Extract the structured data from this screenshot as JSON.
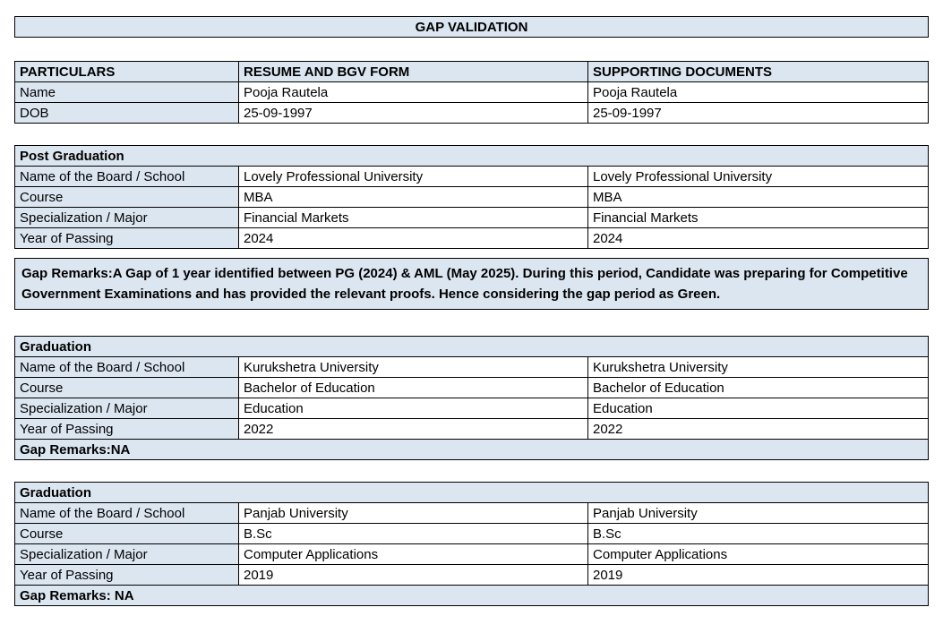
{
  "title": "GAP VALIDATION",
  "columns": [
    "PARTICULARS",
    "RESUME AND BGV FORM",
    "SUPPORTING DOCUMENTS"
  ],
  "summary": [
    {
      "label": "Name",
      "resume": "Pooja Rautela",
      "supporting": "Pooja Rautela"
    },
    {
      "label": "DOB",
      "resume": "25-09-1997",
      "supporting": "25-09-1997"
    }
  ],
  "sections": [
    {
      "heading": "Post Graduation",
      "rows": [
        {
          "label": "Name of the Board / School",
          "resume": "Lovely Professional University",
          "supporting": "Lovely Professional University"
        },
        {
          "label": "Course",
          "resume": "MBA",
          "supporting": "MBA"
        },
        {
          "label": "Specialization / Major",
          "resume": "Financial Markets",
          "supporting": "Financial Markets"
        },
        {
          "label": "Year of Passing",
          "resume": "2024",
          "supporting": "2024"
        }
      ],
      "gap_remarks": "Gap Remarks:A Gap of 1 year identified between PG (2024) & AML (May 2025). During this period, Candidate was preparing for Competitive Government Examinations and has provided the relevant proofs. Hence considering the gap period as Green."
    },
    {
      "heading": "Graduation",
      "rows": [
        {
          "label": "Name of the Board / School",
          "resume": "Kurukshetra University",
          "supporting": "Kurukshetra University"
        },
        {
          "label": "Course",
          "resume": "Bachelor of Education",
          "supporting": "Bachelor of Education"
        },
        {
          "label": "Specialization / Major",
          "resume": "Education",
          "supporting": "Education"
        },
        {
          "label": "Year of Passing",
          "resume": "2022",
          "supporting": "2022"
        }
      ],
      "gap_remarks": "Gap Remarks:NA"
    },
    {
      "heading": "Graduation",
      "rows": [
        {
          "label": "Name of the Board / School",
          "resume": "Panjab University",
          "supporting": "Panjab University"
        },
        {
          "label": "Course",
          "resume": "B.Sc",
          "supporting": "B.Sc"
        },
        {
          "label": "Specialization / Major",
          "resume": "Computer Applications",
          "supporting": "Computer Applications"
        },
        {
          "label": "Year of Passing",
          "resume": "2019",
          "supporting": "2019"
        }
      ],
      "gap_remarks": "Gap Remarks: NA"
    }
  ],
  "colors": {
    "header_bg": "#DCE6F1",
    "border": "#000000",
    "page_bg": "#FFFFFF",
    "text": "#000000"
  }
}
